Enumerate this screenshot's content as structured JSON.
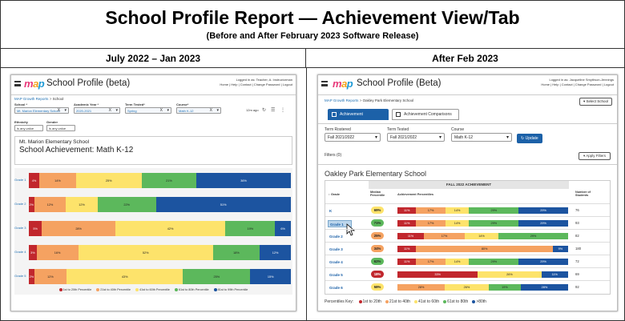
{
  "title": "School Profile Report — Achievement View/Tab",
  "subtitle": "(Before and After February 2023 Software Release)",
  "left_col_header": "July 2022 – Jan 2023",
  "right_col_header": "After Feb 2023",
  "colors": {
    "band1": "#c1272d",
    "band2": "#f5a261",
    "band3": "#fde36b",
    "band4": "#5cb85c",
    "band5": "#1c54a0",
    "accent": "#1c61a8"
  },
  "before": {
    "logo": "map",
    "app_title": "School Profile (beta)",
    "user_info": "Logged in as: Teacher, A. Instructorman",
    "header_links": "Home | Help | Contact | Change Password | Logout",
    "breadcrumb": [
      "MAP Growth Reports",
      "School"
    ],
    "filters": [
      {
        "label": "School *",
        "value": "Mt. Marion Elementary School"
      },
      {
        "label": "Academic Year *",
        "value": "2020-2021"
      },
      {
        "label": "Term Tested*",
        "value": "Spring"
      },
      {
        "label": "Course*",
        "value": "Math K-12"
      }
    ],
    "extra_filters": [
      {
        "label": "Ethnicity",
        "value": "is any value"
      },
      {
        "label": "Gender",
        "value": "is any value"
      }
    ],
    "updated": "12m ago",
    "school_name": "Mt. Marion Elementary School",
    "school_achievement": "School Achievement: Math K-12",
    "rows": [
      {
        "grade": "Grade 1",
        "values": [
          "4%",
          "14%",
          "25%",
          "21%",
          "36%"
        ]
      },
      {
        "grade": "Grade 2",
        "values": [
          "2%",
          "12%",
          "12%",
          "22%",
          "51%"
        ]
      },
      {
        "grade": "Grade 3",
        "values": [
          "5%",
          "28%",
          "42%",
          "19%",
          "6%"
        ]
      },
      {
        "grade": "Grade 4",
        "values": [
          "3%",
          "16%",
          "52%",
          "18%",
          "12%"
        ]
      },
      {
        "grade": "Grade 5",
        "values": [
          "2%",
          "12%",
          "43%",
          "25%",
          "15%"
        ]
      }
    ],
    "legend": [
      "1st to 20th Percentile",
      "21st to 40th Percentile",
      "41st to 60th Percentile",
      "61st to 80th Percentile",
      "81st to 99th Percentile"
    ]
  },
  "after": {
    "logo": "map",
    "app_title": "School Profile (Beta)",
    "user_info": "Logged in as: Jacqueline Smythson-Jennings",
    "header_links": "Home | Help | Contact | Change Password | Logout",
    "breadcrumb": [
      "MAP Growth Reports",
      "Oakley Park Elementary School"
    ],
    "select_school": "▾ Select School",
    "tabs": [
      "Achievement",
      "Achievement Comparisons"
    ],
    "filters": [
      {
        "label": "Term Rostered",
        "value": "Fall 2021/2022"
      },
      {
        "label": "Term Tested",
        "value": "Fall 2021/2022"
      },
      {
        "label": "Course",
        "value": "Math K-12"
      }
    ],
    "update_label": "↻ Update",
    "filters_label": "Filters (0)",
    "apply_filters": "▾ Apply Filters",
    "school_name": "Oakley Park Elementary School",
    "table_header": "FALL 2022 ACHIEVEMENT",
    "col_grade": "↕ Grade",
    "col_median": "Median Percentile",
    "col_ach": "Achievement Percentiles",
    "col_num": "Number of Students",
    "rows": [
      {
        "grade": "K",
        "median": "69%",
        "values": [
          "11%",
          "17%",
          "14%",
          "29%",
          "29%"
        ],
        "n": "76"
      },
      {
        "grade": "Grade 1",
        "median": "71%",
        "values": [
          "11%",
          "17%",
          "14%",
          "29%",
          "29%"
        ],
        "n": "93"
      },
      {
        "grade": "Grade 2",
        "median": "25%",
        "values": [
          "11%",
          "17%",
          "14%",
          "29%",
          ""
        ],
        "n": "82"
      },
      {
        "grade": "Grade 3",
        "median": "34%",
        "values": [
          "11%",
          "80%",
          "",
          "",
          "9%"
        ],
        "n": "180"
      },
      {
        "grade": "Grade 4",
        "median": "62%",
        "values": [
          "11%",
          "17%",
          "14%",
          "29%",
          "29%"
        ],
        "n": "72"
      },
      {
        "grade": "Grade 5",
        "median": "18%",
        "values": [
          "33%",
          "",
          "26%",
          "",
          "11%"
        ],
        "n": "69"
      },
      {
        "grade": "Grade 6",
        "median": "58%",
        "values": [
          "",
          "28%",
          "26%",
          "19%",
          "28%"
        ],
        "n": "92"
      }
    ],
    "legend_title": "Percentiles Key:",
    "legend": [
      "1st to 20th",
      "21st to 40th",
      "41st to 60th",
      "61st to 80th",
      ">80th"
    ]
  }
}
